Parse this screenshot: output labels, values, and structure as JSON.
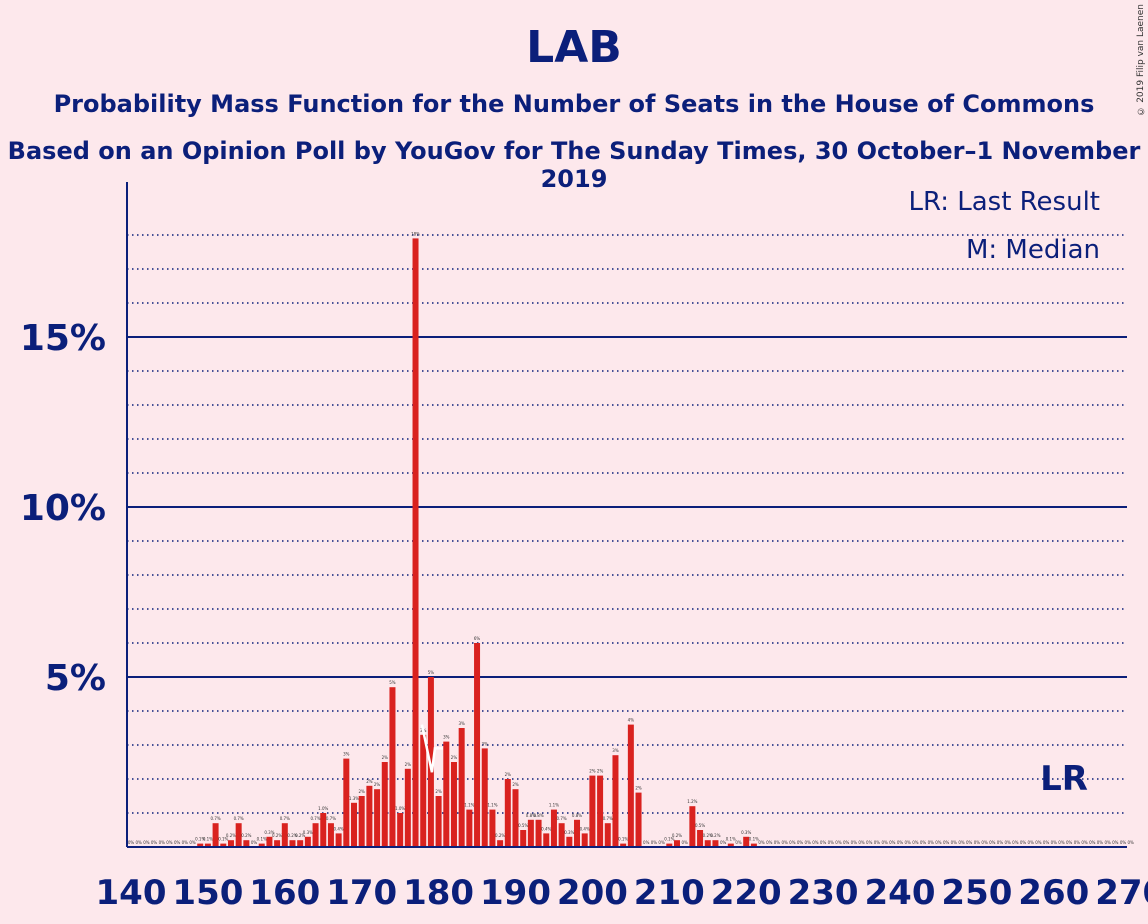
{
  "header": {
    "title": "LAB",
    "subtitle": "Probability Mass Function for the Number of Seats in the House of Commons",
    "source": "Based on an Opinion Poll by YouGov for The Sunday Times, 30 October–1 November 2019",
    "copyright": "© 2019 Filip van Laenen"
  },
  "colors": {
    "bar": "#d9221f",
    "axis": "#0b1f7a",
    "background": "#fde8ec",
    "median_line": "#ffffff"
  },
  "chart_data": {
    "type": "bar",
    "title": "LAB",
    "xlabel": "",
    "ylabel": "",
    "xlim": [
      140,
      270
    ],
    "ylim": [
      0,
      19.5
    ],
    "x_ticks": [
      140,
      150,
      160,
      170,
      180,
      190,
      200,
      210,
      220,
      230,
      240,
      250,
      260,
      270
    ],
    "y_ticks": [
      {
        "value": 5,
        "label": "5%"
      },
      {
        "value": 10,
        "label": "10%"
      },
      {
        "value": 15,
        "label": "15%"
      }
    ],
    "grid": true,
    "legend": {
      "position": "top-right",
      "entries": [
        "LR: Last Result",
        "M: Median"
      ]
    },
    "last_result": {
      "seats": 262,
      "label": "LR"
    },
    "median": {
      "seats": 179,
      "label": "M"
    },
    "series": [
      {
        "x": [
          140,
          141,
          142,
          143,
          144,
          145,
          146,
          147,
          148,
          149,
          150,
          151,
          152,
          153,
          154,
          155,
          156,
          157,
          158,
          159,
          160,
          161,
          162,
          163,
          164,
          165,
          166,
          167,
          168,
          169,
          170,
          171,
          172,
          173,
          174,
          175,
          176,
          177,
          178,
          179,
          180,
          181,
          182,
          183,
          184,
          185,
          186,
          187,
          188,
          189,
          190,
          191,
          192,
          193,
          194,
          195,
          196,
          197,
          198,
          199,
          200,
          201,
          202,
          203,
          204,
          205,
          206,
          207,
          208,
          209,
          210,
          211,
          212,
          213,
          214,
          215,
          216,
          217,
          218,
          219,
          220,
          221,
          222,
          223,
          224,
          225,
          226,
          227,
          228,
          229,
          230,
          231,
          232,
          233,
          234,
          235,
          236,
          237,
          238,
          239,
          240,
          241,
          242,
          243,
          244,
          245,
          246,
          247,
          248,
          249,
          250,
          251,
          252,
          253,
          254,
          255,
          256,
          257,
          258,
          259,
          260,
          261,
          262,
          263,
          264,
          265,
          266,
          267,
          268,
          269,
          270
        ],
        "values": [
          0,
          0,
          0,
          0,
          0,
          0,
          0,
          0,
          0,
          0.1,
          0.1,
          0.7,
          0.1,
          0.2,
          0.7,
          0.2,
          0,
          0.1,
          0.3,
          0.2,
          0.7,
          0.2,
          0.2,
          0.3,
          0.7,
          1.0,
          0.7,
          0.4,
          2.6,
          1.3,
          1.5,
          1.8,
          1.7,
          2.5,
          4.7,
          1.0,
          2.3,
          17.9,
          3.3,
          5.0,
          1.5,
          3.1,
          2.5,
          3.5,
          1.1,
          6.0,
          2.9,
          1.1,
          0.2,
          2.0,
          1.7,
          0.5,
          0.8,
          0.8,
          0.4,
          1.1,
          0.7,
          0.3,
          0.8,
          0.4,
          2.1,
          2.1,
          0.7,
          2.7,
          0.1,
          3.6,
          1.6,
          0,
          0,
          0,
          0.1,
          0.2,
          0,
          1.2,
          0.5,
          0.2,
          0.2,
          0,
          0.1,
          0,
          0.3,
          0.1,
          0,
          0,
          0,
          0,
          0,
          0,
          0,
          0,
          0,
          0,
          0,
          0,
          0,
          0,
          0,
          0,
          0,
          0,
          0,
          0,
          0,
          0,
          0,
          0,
          0,
          0,
          0,
          0,
          0,
          0,
          0,
          0,
          0,
          0,
          0,
          0,
          0,
          0,
          0,
          0,
          0,
          0,
          0,
          0,
          0,
          0,
          0,
          0,
          0
        ],
        "labels": [
          "0%",
          "0%",
          "0%",
          "0%",
          "0%",
          "0%",
          "0%",
          "0%",
          "0%",
          "0.1%",
          "0.1%",
          "0.7%",
          "0.1%",
          "0.2%",
          "0.7%",
          "0.2%",
          "0%",
          "0.1%",
          "0.3%",
          "0.2%",
          "0.7%",
          "0.2%",
          "0.2%",
          "0.3%",
          "0.7%",
          "1.0%",
          "0.7%",
          "0.4%",
          "3%",
          "1.3%",
          "2%",
          "2%",
          "2%",
          "2%",
          "5%",
          "1.0%",
          "2%",
          "18%",
          "3%",
          "5%",
          "2%",
          "3%",
          "2%",
          "3%",
          "1.1%",
          "6%",
          "3%",
          "1.1%",
          "0.2%",
          "2%",
          "2%",
          "0.5%",
          "0.8%",
          "0.8%",
          "0.4%",
          "1.1%",
          "0.7%",
          "0.3%",
          "0.8%",
          "0.4%",
          "2%",
          "2%",
          "0.7%",
          "3%",
          "0.1%",
          "4%",
          "2%",
          "0%",
          "0%",
          "0%",
          "0.1%",
          "0.2%",
          "0%",
          "1.2%",
          "0.5%",
          "0.2%",
          "0.2%",
          "0%",
          "0.1%",
          "0%",
          "0.3%",
          "0.1%",
          "0%",
          "0%",
          "0%",
          "0%",
          "0%",
          "0%",
          "0%",
          "0%",
          "0%",
          "0%",
          "0%",
          "0%",
          "0%",
          "0%",
          "0%",
          "0%",
          "0%",
          "0%",
          "0%",
          "0%",
          "0%",
          "0%",
          "0%",
          "0%",
          "0%",
          "0%",
          "0%",
          "0%",
          "0%",
          "0%",
          "0%",
          "0%",
          "0%",
          "0%",
          "0%",
          "0%",
          "0%",
          "0%",
          "0%",
          "0%",
          "0%",
          "0%",
          "0%",
          "0%",
          "0%",
          "0%",
          "0%",
          "0%",
          "0%"
        ]
      }
    ]
  }
}
